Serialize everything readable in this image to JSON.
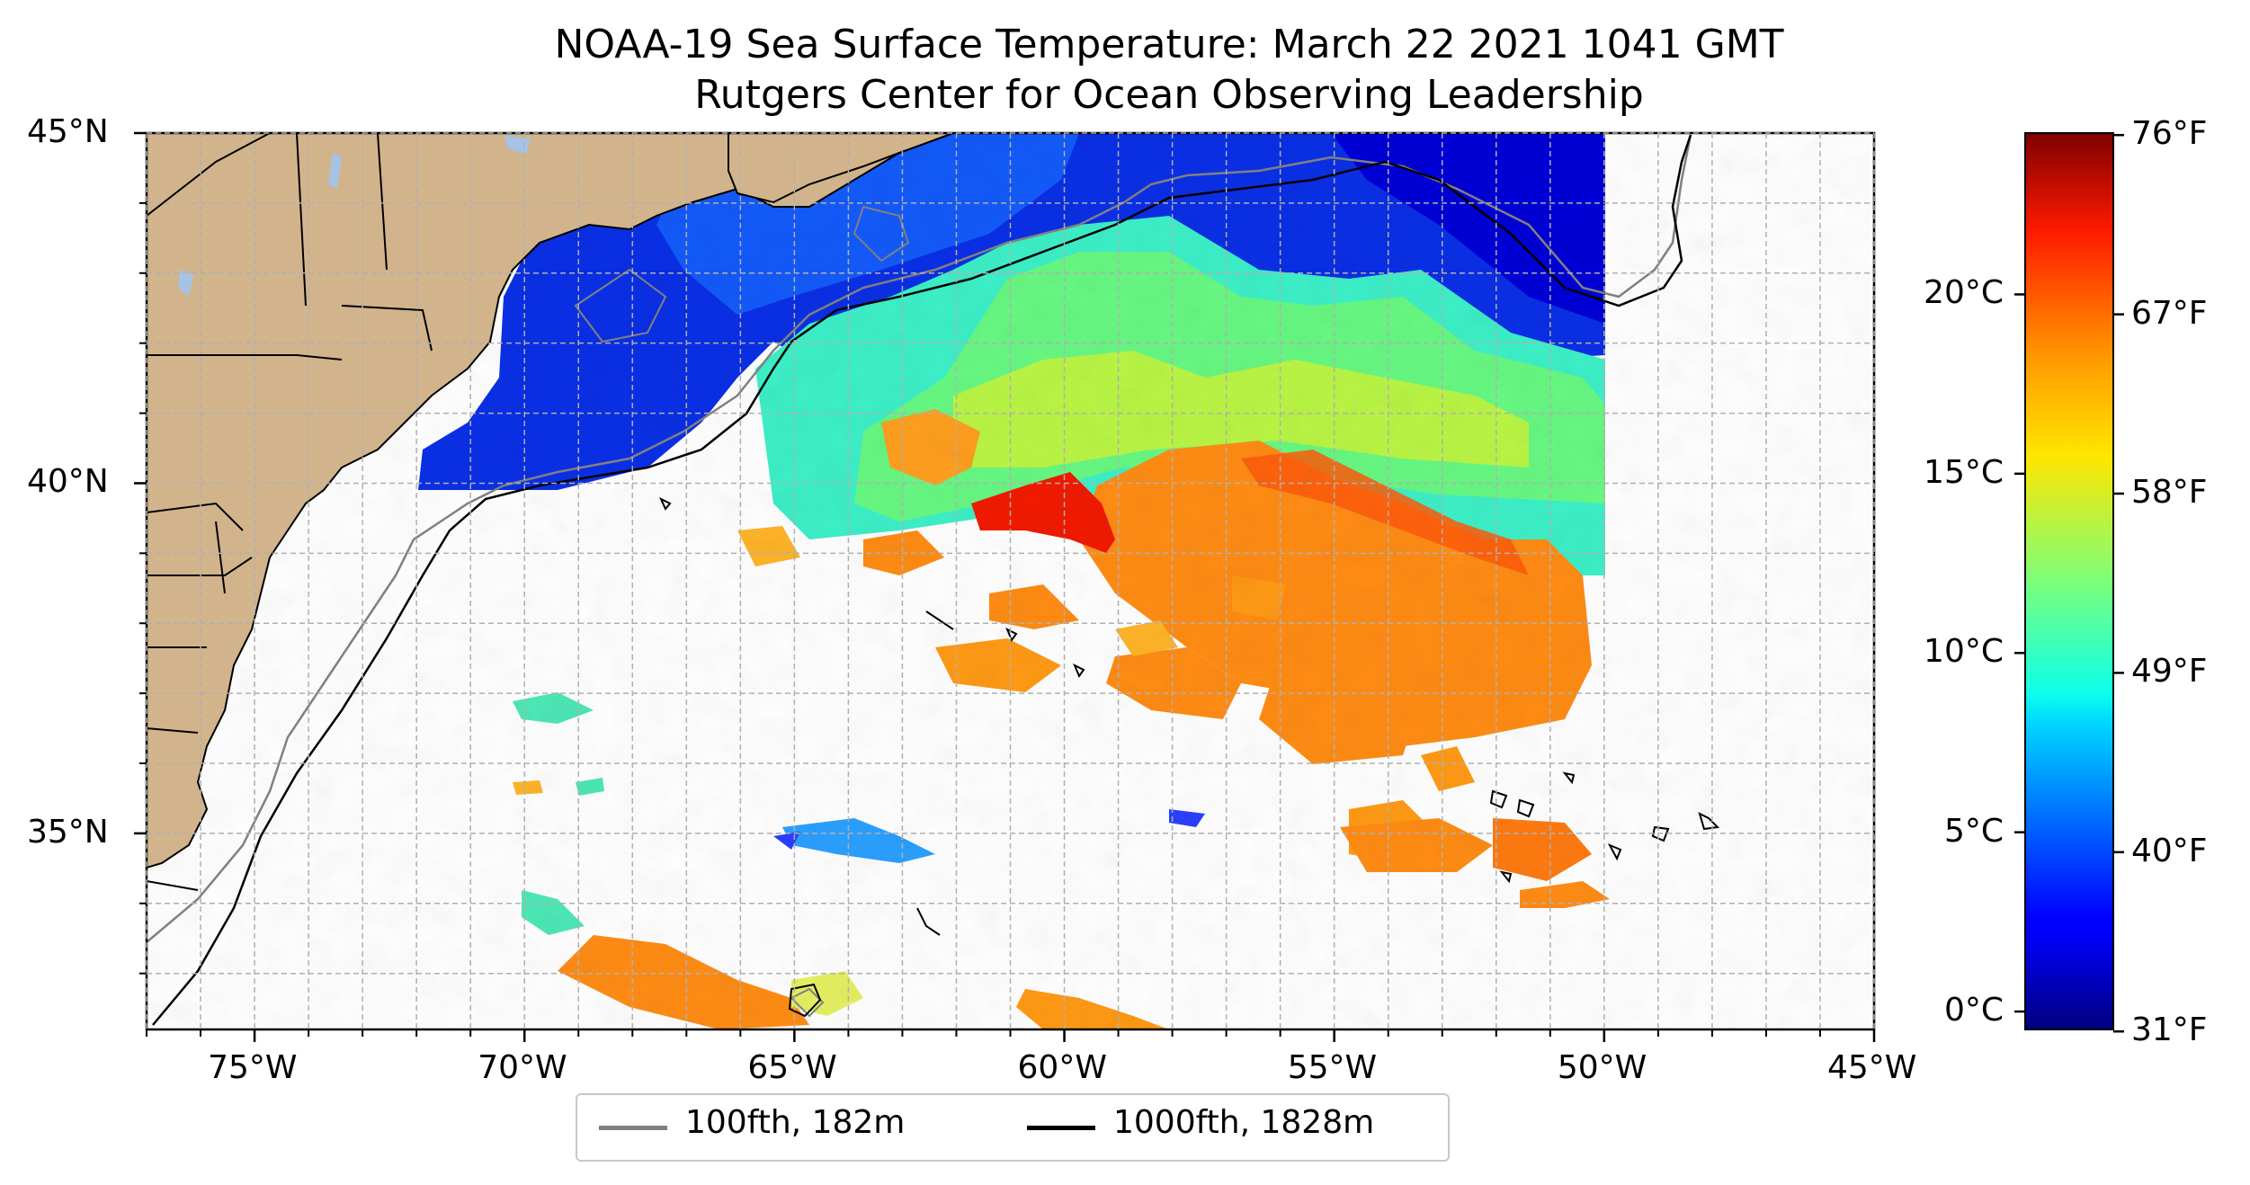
{
  "title": "NOAA-19 Sea Surface Temperature: March 22 2021 1041 GMT",
  "subtitle": "Rutgers Center for Ocean Observing Leadership",
  "map": {
    "lon_range": [
      -77,
      -45
    ],
    "lat_range": [
      32.2,
      45
    ],
    "lon_ticks": [
      -75,
      -70,
      -65,
      -60,
      -55,
      -50,
      -45
    ],
    "lon_labels": [
      "75°W",
      "70°W",
      "65°W",
      "60°W",
      "55°W",
      "50°W",
      "45°W"
    ],
    "lat_ticks": [
      35,
      40,
      45
    ],
    "lat_labels": [
      "35°N",
      "40°N",
      "45°N"
    ],
    "gridlines": true,
    "land_color": "#d2b48c",
    "lake_color": "#a6c3e6",
    "region": "Northwest Atlantic, Mid-Atlantic Bight to Scotian Shelf"
  },
  "legend": {
    "position": "bottom-center",
    "items": [
      {
        "label": "100fth, 182m",
        "color": "#808080"
      },
      {
        "label": "1000fth, 1828m",
        "color": "#000000"
      }
    ]
  },
  "colorbar": {
    "colormap": "jet",
    "range_c": [
      -0.5,
      24.5
    ],
    "celsius_ticks": [
      0,
      5,
      10,
      15,
      20
    ],
    "celsius_labels": [
      "0°C",
      "5°C",
      "10°C",
      "15°C",
      "20°C"
    ],
    "fahrenheit_ticks": [
      31,
      40,
      49,
      58,
      67,
      76
    ],
    "fahrenheit_labels": [
      "31°F",
      "40°F",
      "49°F",
      "58°F",
      "67°F",
      "76°F"
    ]
  }
}
